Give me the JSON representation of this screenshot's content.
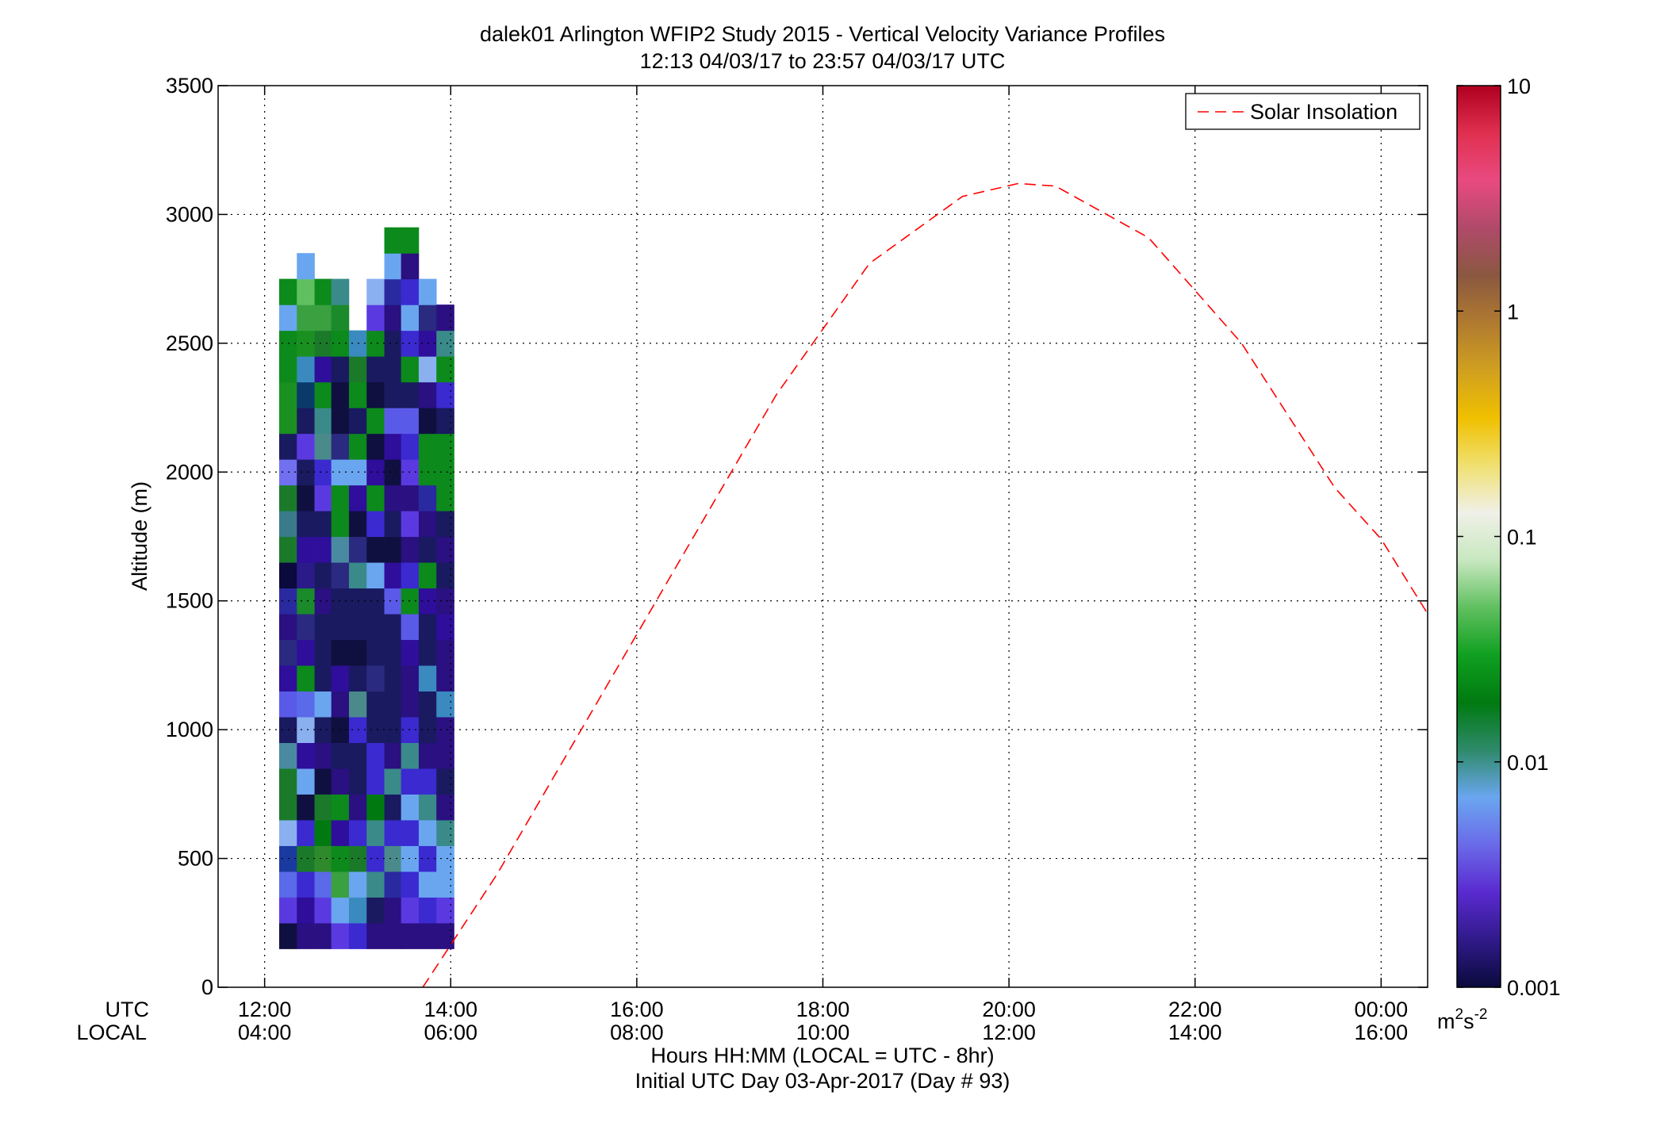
{
  "chart_data": {
    "type": "heatmap",
    "title": "dalek01 Arlington WFIP2 Study 2015 - Vertical Velocity Variance Profiles",
    "subtitle": "12:13 04/03/17 to 23:57 04/03/17  UTC",
    "ylabel": "Altitude (m)",
    "xlabel": "Hours HH:MM  (LOCAL = UTC - 8hr)",
    "xlabel2": "Initial UTC Day 03-Apr-2017 (Day # 93)",
    "row_label_utc": "UTC",
    "row_label_local": "LOCAL",
    "xlim_utc_hours": [
      11.5,
      24.5
    ],
    "ylim": [
      0,
      3500
    ],
    "x_ticks": [
      {
        "hour": 12,
        "utc": "12:00",
        "local": "04:00"
      },
      {
        "hour": 14,
        "utc": "14:00",
        "local": "06:00"
      },
      {
        "hour": 16,
        "utc": "16:00",
        "local": "08:00"
      },
      {
        "hour": 18,
        "utc": "18:00",
        "local": "10:00"
      },
      {
        "hour": 20,
        "utc": "20:00",
        "local": "12:00"
      },
      {
        "hour": 22,
        "utc": "22:00",
        "local": "14:00"
      },
      {
        "hour": 24,
        "utc": "00:00",
        "local": "16:00"
      }
    ],
    "y_ticks": [
      {
        "value": 0,
        "label": "0"
      },
      {
        "value": 500,
        "label": "500"
      },
      {
        "value": 1000,
        "label": "1000"
      },
      {
        "value": 1500,
        "label": "1500"
      },
      {
        "value": 2000,
        "label": "2000"
      },
      {
        "value": 2500,
        "label": "2500"
      },
      {
        "value": 3000,
        "label": "3000"
      },
      {
        "value": 3500,
        "label": "3500"
      }
    ],
    "grid": true,
    "legend": {
      "position": "top-right",
      "entries": [
        "Solar Insolation"
      ]
    },
    "colorbar": {
      "scale": "log",
      "range": [
        0.001,
        10
      ],
      "ticks": [
        {
          "value": 0.001,
          "label": "0.001"
        },
        {
          "value": 0.01,
          "label": "0.01"
        },
        {
          "value": 0.1,
          "label": "0.1"
        },
        {
          "value": 1,
          "label": "1"
        },
        {
          "value": 10,
          "label": "10"
        }
      ],
      "units": "m²s⁻²",
      "units_base": "m",
      "units_exp1": "2",
      "units_mid": "s",
      "units_exp2": "-2",
      "stops": [
        "#0a0a3c",
        "#301a8a",
        "#5a2ad0",
        "#6a6ae8",
        "#6aa6f0",
        "#2e8a6a",
        "#007a10",
        "#10a020",
        "#60c060",
        "#c8e8c0",
        "#f0f0e8",
        "#f0e070",
        "#f0c000",
        "#d0a020",
        "#b07a30",
        "#8a5840",
        "#b04a6a",
        "#e84a80",
        "#e03050",
        "#b00020"
      ]
    },
    "solar_insolation": {
      "name": "Solar Insolation",
      "color": "#ff0000",
      "x_utc_hours": [
        13.7,
        14.5,
        15.5,
        16.5,
        17.5,
        18.5,
        19.5,
        20.1,
        20.5,
        21.5,
        22.5,
        23.5,
        24.0,
        24.5
      ],
      "altitude_m": [
        0,
        440,
        1060,
        1680,
        2300,
        2810,
        3070,
        3120,
        3110,
        2910,
        2500,
        1940,
        1740,
        1450
      ]
    },
    "time_step_hours": 0.1875,
    "altitude_step_m": 100,
    "columns": [
      {
        "t": 12.25,
        "alt_start": 200,
        "cells": [
          "#101040",
          "#5a3ae0",
          "#5a6ae8",
          "#1a3aa0",
          "#8ab0f0",
          "#1a7a2a",
          "#1a7a2a",
          "#4a8aa0",
          "#1a1a60",
          "#5a5ae8",
          "#2e0e9a",
          "#2a2a80",
          "#2a1080",
          "#2a2aa0",
          "#0a0a3c",
          "#1a7a2a",
          "#3a7a8a",
          "#1a7a2a",
          "#7070f0",
          "#1a1a60",
          "#1a9020",
          "#1a9020",
          "#0c8a1c",
          "#0c8a1c",
          "#6aa6f0",
          "#0c8a1c"
        ]
      },
      {
        "t": 12.44,
        "alt_start": 200,
        "cells": [
          "#2a1080",
          "#2e0e9a",
          "#3a2ad0",
          "#1a7a2a",
          "#3a2ad0",
          "#101040",
          "#6aa6f0",
          "#2e0e9a",
          "#8ab0f0",
          "#5a6ae8",
          "#0c8a1c",
          "#2e0e9a",
          "#2a2a80",
          "#1a8a2a",
          "#2a1a8a",
          "#2e0e9a",
          "#1a1a60",
          "#101040",
          "#1a1a60",
          "#5a3ae0",
          "#1a1a60",
          "#0a3a6a",
          "#3a8ac0",
          "#1a9020",
          "#3aa040",
          "#60c060",
          "#6aa6f0"
        ]
      },
      {
        "t": 12.63,
        "alt_start": 200,
        "cells": [
          "#2a1080",
          "#5a3ae0",
          "#5a6ae8",
          "#2e8a2a",
          "#007a10",
          "#1a7a2a",
          "#101040",
          "#2a1080",
          "#1a1a60",
          "#6aa6f0",
          "#1a1a60",
          "#1a1a60",
          "#1a1a60",
          "#2a1080",
          "#1a1a60",
          "#2e0e9a",
          "#1a1a60",
          "#5a3ae0",
          "#3a2ad0",
          "#4a8a8a",
          "#3a8a8a",
          "#0c8a1c",
          "#2e0e9a",
          "#1a7a2a",
          "#3aa040",
          "#0c8a1c"
        ]
      },
      {
        "t": 12.81,
        "alt_start": 200,
        "cells": [
          "#5a3ae0",
          "#6aa6f0",
          "#3aa040",
          "#0c8a1c",
          "#2e0e9a",
          "#0c8a1c",
          "#2a1080",
          "#1a1a60",
          "#101040",
          "#2a1080",
          "#2e0e9a",
          "#101040",
          "#1a1a60",
          "#1a1a60",
          "#2a2a80",
          "#4a8aa0",
          "#0c8a1c",
          "#0c8a1c",
          "#6aa6f0",
          "#2a2a80",
          "#101040",
          "#101040",
          "#1a1a60",
          "#0c8a1c",
          "#1a8a2a",
          "#3a8a8a"
        ]
      },
      {
        "t": 13.0,
        "alt_start": 200,
        "cells": [
          "#3a2ad0",
          "#3a8ac0",
          "#6aa6f0",
          "#1a7a2a",
          "#3a2ad0",
          "#2a1080",
          "#1a1a60",
          "#1a1a60",
          "#3a2ad0",
          "#4a8a8a",
          "#1a1a60",
          "#101040",
          "#1a1a60",
          "#1a1a60",
          "#3a8a8a",
          "#2a2a80",
          "#101040",
          "#2e0e9a",
          "#6aa6f0",
          "#0c8a1c",
          "#1a1a60",
          "#0c8a1c",
          "#1a7a2a",
          "#3a8ac0"
        ]
      },
      {
        "t": 13.19,
        "alt_start": 200,
        "cells": [
          "#2a1080",
          "#1a1a60",
          "#3a8a8a",
          "#3a2ad0",
          "#3a8a8a",
          "#007a10",
          "#3a2ad0",
          "#3a2ad0",
          "#1a1a60",
          "#1a1a60",
          "#2a2a80",
          "#1a1a60",
          "#1a1a60",
          "#1a1a60",
          "#6aa6f0",
          "#101040",
          "#3a2ad0",
          "#0c8a1c",
          "#2e0e9a",
          "#101040",
          "#0c8a1c",
          "#101040",
          "#1a1a60",
          "#0c8a1c",
          "#5a3ae0",
          "#8ab0f0"
        ]
      },
      {
        "t": 13.38,
        "alt_start": 200,
        "cells": [
          "#2a1080",
          "#2a1080",
          "#2a2aa0",
          "#4a8a8a",
          "#3a2ad0",
          "#1a1a60",
          "#3a8a8a",
          "#2a1080",
          "#1a1a60",
          "#1a1a60",
          "#1a1a60",
          "#1a1a60",
          "#1a1a60",
          "#5a5ae8",
          "#2e0e9a",
          "#101040",
          "#1a1a60",
          "#2a1080",
          "#101040",
          "#2e0e9a",
          "#5a5ae8",
          "#1a1a60",
          "#1a1a60",
          "#1a1a60",
          "#2a1080",
          "#2a2aa0",
          "#6aa6f0",
          "#0c8a1c"
        ]
      },
      {
        "t": 13.56,
        "alt_start": 200,
        "cells": [
          "#2a1080",
          "#5a3ae0",
          "#3a2ad0",
          "#6aa6f0",
          "#3a2ad0",
          "#6aa6f0",
          "#3a2ad0",
          "#3a8a8a",
          "#3a2ad0",
          "#2a1080",
          "#2a1080",
          "#2e0e9a",
          "#5a5ae8",
          "#0c8a1c",
          "#3a2ad0",
          "#2a1080",
          "#5a3ae0",
          "#2a1080",
          "#5a3ae0",
          "#3a2ad0",
          "#5a5ae8",
          "#1a1a60",
          "#0c8a1c",
          "#3a2ad0",
          "#6aa6f0",
          "#3a2ad0",
          "#2a1080",
          "#0c8a1c"
        ]
      },
      {
        "t": 13.75,
        "alt_start": 200,
        "cells": [
          "#2a1080",
          "#3a2ad0",
          "#6aa6f0",
          "#3a2ad0",
          "#6aa6f0",
          "#3a8a8a",
          "#3a2ad0",
          "#2a1080",
          "#1a1a60",
          "#1a1a60",
          "#3a8ac0",
          "#1a1a60",
          "#1a1a60",
          "#2e0e9a",
          "#0c8a1c",
          "#1a1a60",
          "#2a1080",
          "#2a2aa0",
          "#0c8a1c",
          "#0c8a1c",
          "#101040",
          "#2a1080",
          "#8ab0f0",
          "#2e0e9a",
          "#2a2a80",
          "#6aa6f0"
        ]
      },
      {
        "t": 13.94,
        "alt_start": 200,
        "cells": [
          "#2a1080",
          "#5a3ae0",
          "#6aa6f0",
          "#6aa6f0",
          "#3a8a8a",
          "#2a1080",
          "#1a1a60",
          "#2a1080",
          "#2a1080",
          "#3a8ac0",
          "#2a1080",
          "#2a1080",
          "#2e0e9a",
          "#2a1080",
          "#1a1a60",
          "#2a1080",
          "#1a1a60",
          "#0c8a1c",
          "#0c8a1c",
          "#0c8a1c",
          "#1a1a60",
          "#3a2ad0",
          "#0c8a1c",
          "#3a8a8a",
          "#2a1080"
        ]
      }
    ]
  }
}
